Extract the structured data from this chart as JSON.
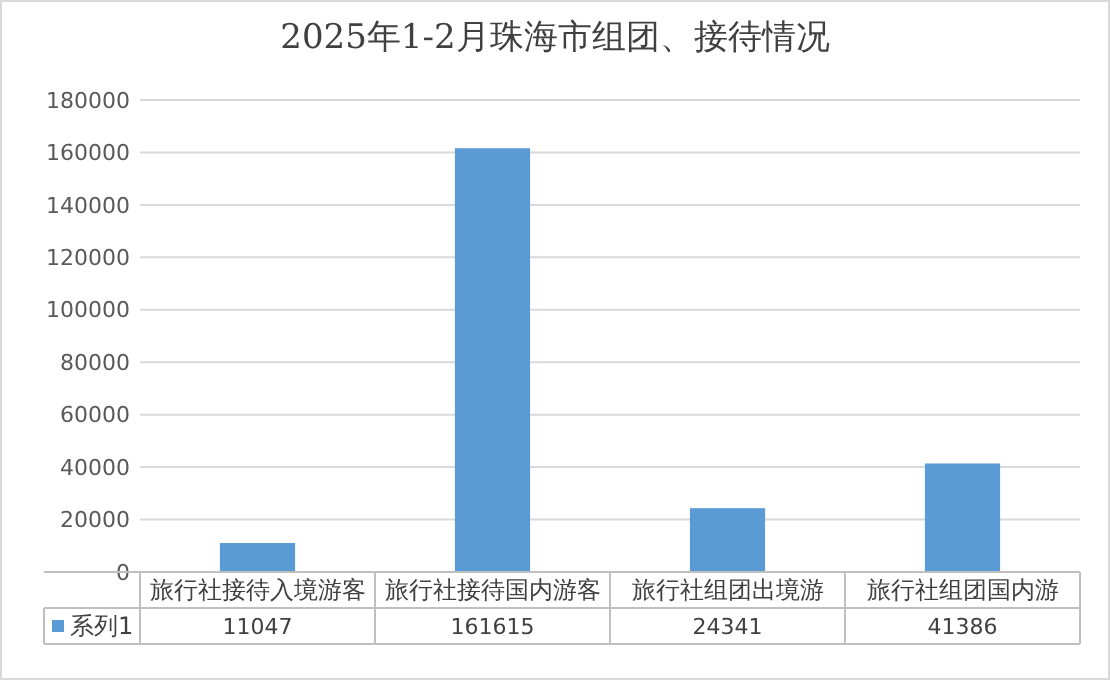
{
  "chart_data": {
    "type": "bar",
    "title": "2025年1-2月珠海市组团、接待情况",
    "categories": [
      "旅行社接待入境游客",
      "旅行社接待国内游客",
      "旅行社组团出境游",
      "旅行社组团国内游"
    ],
    "series": [
      {
        "name": "系列1",
        "color": "#5b9bd5",
        "values": [
          11047,
          161615,
          24341,
          41386
        ]
      }
    ],
    "ylim": [
      0,
      180000
    ],
    "yticks": [
      0,
      20000,
      40000,
      60000,
      80000,
      100000,
      120000,
      140000,
      160000,
      180000
    ],
    "grid": "y",
    "legend": "bottom",
    "data_labels": true
  }
}
